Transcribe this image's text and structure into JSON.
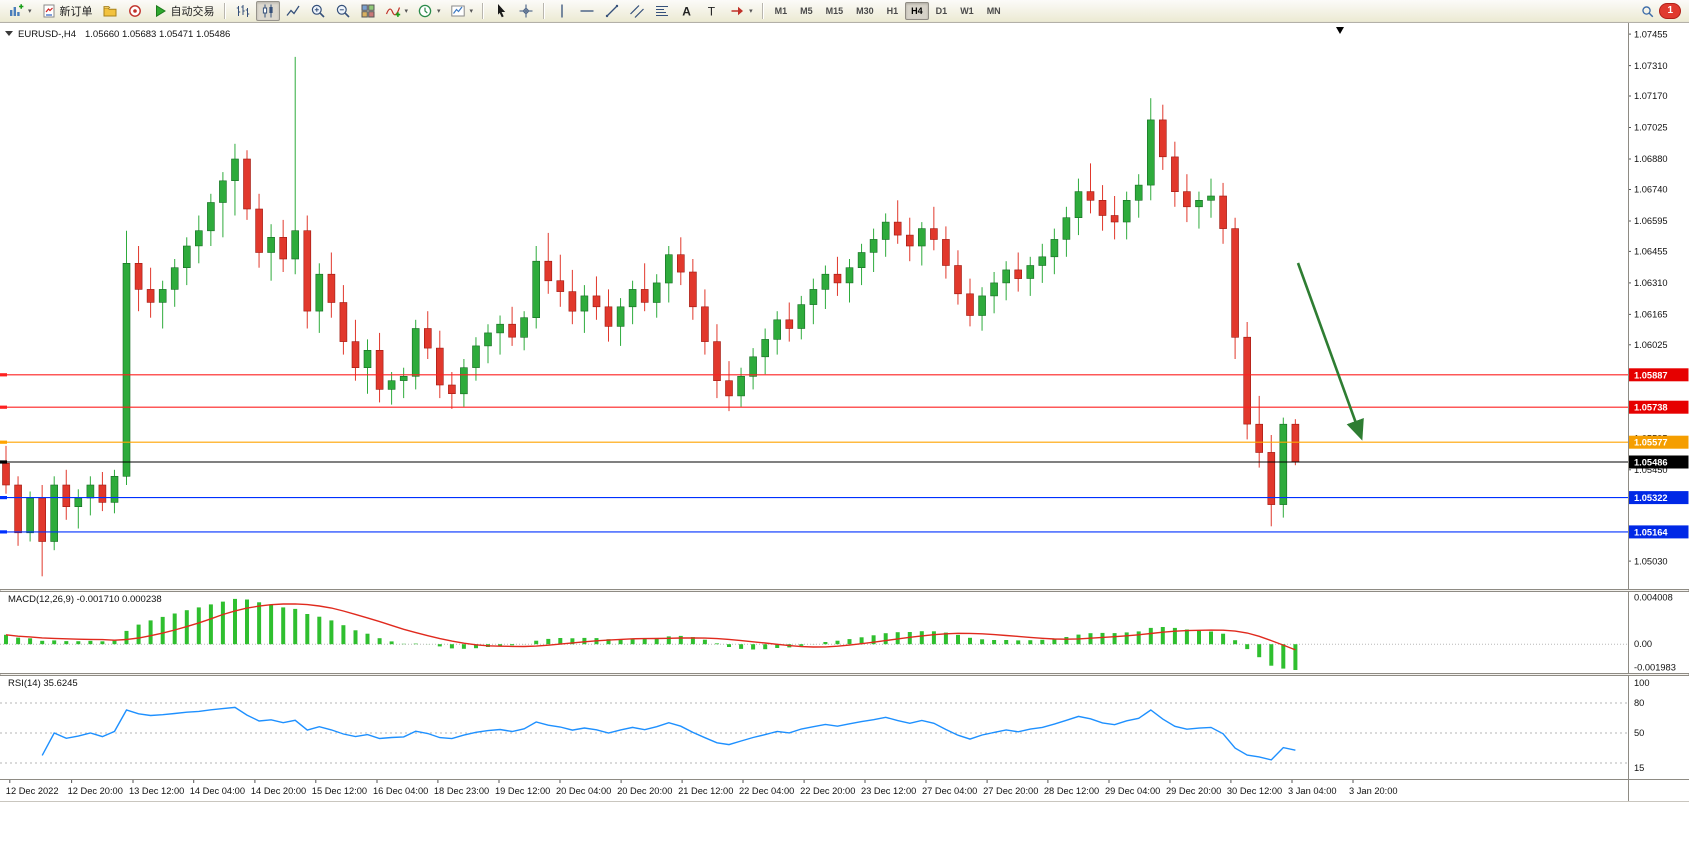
{
  "toolbar": {
    "new_order_label": "新订单",
    "auto_trading_label": "自动交易",
    "timeframes": [
      "M1",
      "M5",
      "M15",
      "M30",
      "H1",
      "H4",
      "D1",
      "W1",
      "MN"
    ],
    "selected_timeframe": "H4",
    "notification_badge": "1",
    "icons": [
      "new-chart",
      "new-order",
      "profiles",
      "community",
      "auto-trading",
      "bar-chart",
      "candlestick-chart",
      "line-chart",
      "zoom-in",
      "zoom-out",
      "tile-windows",
      "indicators",
      "periods-clock",
      "template",
      "cursor",
      "crosshair",
      "vertical-line",
      "horizontal-line",
      "trendline",
      "equidistant-channel",
      "fibonacci",
      "text",
      "text-label",
      "arrows",
      "search",
      "notifications"
    ]
  },
  "chart": {
    "symbol_title": "EURUSD-,H4",
    "ohlc_values": "1.05660 1.05683 1.05471 1.05486"
  },
  "indicators": {
    "macd_text": "MACD(12,26,9) -0.001710 0.000238",
    "rsi_text": "RSI(14) 35.6245"
  },
  "colors": {
    "up": "#2eab3c",
    "up_stroke": "#156b22",
    "down": "#e1382c",
    "down_stroke": "#9c1810",
    "hline_red": "#fe2020",
    "hline_orange": "#ffa400",
    "hline_blue": "#0030ff",
    "current_price": "#000000",
    "arrow": "#2e7d32",
    "macd_hist": "#2fbf2f",
    "macd_signal": "#e02a1e",
    "rsi_line": "#1e90ff"
  },
  "chart_data": {
    "type": "candlestick",
    "symbol": "EURUSD-",
    "timeframe": "H4",
    "current": {
      "open": 1.0566,
      "high": 1.05683,
      "low": 1.05471,
      "close": 1.05486
    },
    "ylim": [
      1.049,
      1.0751
    ],
    "price_ticks": [
      "1.07455",
      "1.07310",
      "1.07170",
      "1.07025",
      "1.06880",
      "1.06740",
      "1.06595",
      "1.06455",
      "1.06310",
      "1.06165",
      "1.06025",
      "1.05880",
      "1.05735",
      "1.05595",
      "1.05450",
      "1.05310",
      "1.05165",
      "1.05030"
    ],
    "hlines": [
      {
        "price": 1.05887,
        "label": "1.05887",
        "color": "#fe2020",
        "tag": "#e60000"
      },
      {
        "price": 1.05738,
        "label": "1.05738",
        "color": "#fe2020",
        "tag": "#e60000"
      },
      {
        "price": 1.05577,
        "label": "1.05577",
        "color": "#ffa400",
        "tag": "#f59e00"
      },
      {
        "price": 1.05486,
        "label": "1.05486",
        "color": "#000000",
        "tag": "#000000",
        "current": true
      },
      {
        "price": 1.05322,
        "label": "1.05322",
        "color": "#0030ff",
        "tag": "#0028e6"
      },
      {
        "price": 1.05164,
        "label": "1.05164",
        "color": "#0030ff",
        "tag": "#0028e6"
      }
    ],
    "trend_arrow": {
      "from_frac": 0.797,
      "from_price": 1.064,
      "to_frac": 0.836,
      "to_price": 1.056,
      "color": "#2e7d32"
    },
    "candles": [
      [
        1.0548,
        1.0556,
        1.0534,
        1.0538
      ],
      [
        1.0538,
        1.0542,
        1.051,
        1.0516
      ],
      [
        1.0516,
        1.0535,
        1.0512,
        1.0532
      ],
      [
        1.0532,
        1.0538,
        1.0496,
        1.0512
      ],
      [
        1.0512,
        1.0542,
        1.0508,
        1.0538
      ],
      [
        1.0538,
        1.0545,
        1.0522,
        1.0528
      ],
      [
        1.0528,
        1.0536,
        1.0518,
        1.0532
      ],
      [
        1.0532,
        1.0542,
        1.0524,
        1.0538
      ],
      [
        1.0538,
        1.0544,
        1.0526,
        1.053
      ],
      [
        1.053,
        1.0545,
        1.0525,
        1.0542
      ],
      [
        1.0542,
        1.0655,
        1.0538,
        1.064
      ],
      [
        1.064,
        1.0648,
        1.0618,
        1.0628
      ],
      [
        1.0628,
        1.0638,
        1.0615,
        1.0622
      ],
      [
        1.0622,
        1.0632,
        1.061,
        1.0628
      ],
      [
        1.0628,
        1.0642,
        1.062,
        1.0638
      ],
      [
        1.0638,
        1.0652,
        1.063,
        1.0648
      ],
      [
        1.0648,
        1.0662,
        1.064,
        1.0655
      ],
      [
        1.0655,
        1.0672,
        1.0648,
        1.0668
      ],
      [
        1.0668,
        1.0682,
        1.0652,
        1.0678
      ],
      [
        1.0678,
        1.0695,
        1.0662,
        1.0688
      ],
      [
        1.0688,
        1.0692,
        1.066,
        1.0665
      ],
      [
        1.0665,
        1.0672,
        1.0638,
        1.0645
      ],
      [
        1.0645,
        1.0658,
        1.0632,
        1.0652
      ],
      [
        1.0652,
        1.066,
        1.0636,
        1.0642
      ],
      [
        1.0642,
        1.0735,
        1.0635,
        1.0655
      ],
      [
        1.0655,
        1.0662,
        1.061,
        1.0618
      ],
      [
        1.0618,
        1.064,
        1.0608,
        1.0635
      ],
      [
        1.0635,
        1.0645,
        1.0615,
        1.0622
      ],
      [
        1.0622,
        1.063,
        1.0598,
        1.0604
      ],
      [
        1.0604,
        1.0614,
        1.0586,
        1.0592
      ],
      [
        1.0592,
        1.0605,
        1.058,
        1.06
      ],
      [
        1.06,
        1.0608,
        1.0576,
        1.0582
      ],
      [
        1.0582,
        1.059,
        1.0575,
        1.0586
      ],
      [
        1.0586,
        1.0592,
        1.0578,
        1.0588
      ],
      [
        1.0588,
        1.0614,
        1.0582,
        1.061
      ],
      [
        1.061,
        1.0618,
        1.0596,
        1.0601
      ],
      [
        1.0601,
        1.0609,
        1.0578,
        1.0584
      ],
      [
        1.0584,
        1.059,
        1.0573,
        1.058
      ],
      [
        1.058,
        1.0596,
        1.0574,
        1.0592
      ],
      [
        1.0592,
        1.0606,
        1.0586,
        1.0602
      ],
      [
        1.0602,
        1.0612,
        1.0594,
        1.0608
      ],
      [
        1.0608,
        1.0616,
        1.0598,
        1.0612
      ],
      [
        1.0612,
        1.062,
        1.0602,
        1.0606
      ],
      [
        1.0606,
        1.0618,
        1.06,
        1.0615
      ],
      [
        1.0615,
        1.0648,
        1.061,
        1.0641
      ],
      [
        1.0641,
        1.0654,
        1.0626,
        1.0632
      ],
      [
        1.0632,
        1.0644,
        1.062,
        1.0627
      ],
      [
        1.0627,
        1.0637,
        1.0612,
        1.0618
      ],
      [
        1.0618,
        1.063,
        1.0608,
        1.0625
      ],
      [
        1.0625,
        1.0634,
        1.0614,
        1.062
      ],
      [
        1.062,
        1.0628,
        1.0604,
        1.0611
      ],
      [
        1.0611,
        1.0624,
        1.0602,
        1.062
      ],
      [
        1.062,
        1.0632,
        1.0612,
        1.0628
      ],
      [
        1.0628,
        1.064,
        1.0618,
        1.0622
      ],
      [
        1.0622,
        1.0635,
        1.0615,
        1.0631
      ],
      [
        1.0631,
        1.0648,
        1.0622,
        1.0644
      ],
      [
        1.0644,
        1.0652,
        1.063,
        1.0636
      ],
      [
        1.0636,
        1.0642,
        1.0614,
        1.062
      ],
      [
        1.062,
        1.0628,
        1.0598,
        1.0604
      ],
      [
        1.0604,
        1.0612,
        1.0578,
        1.0586
      ],
      [
        1.0586,
        1.0595,
        1.0572,
        1.0579
      ],
      [
        1.0579,
        1.0592,
        1.0574,
        1.0588
      ],
      [
        1.0588,
        1.0601,
        1.0582,
        1.0597
      ],
      [
        1.0597,
        1.061,
        1.0589,
        1.0605
      ],
      [
        1.0605,
        1.0618,
        1.0598,
        1.0614
      ],
      [
        1.0614,
        1.0622,
        1.0604,
        1.061
      ],
      [
        1.061,
        1.0625,
        1.0605,
        1.0621
      ],
      [
        1.0621,
        1.0633,
        1.0612,
        1.0628
      ],
      [
        1.0628,
        1.0639,
        1.0619,
        1.0635
      ],
      [
        1.0635,
        1.0643,
        1.0625,
        1.0631
      ],
      [
        1.0631,
        1.0642,
        1.0622,
        1.0638
      ],
      [
        1.0638,
        1.0649,
        1.063,
        1.0645
      ],
      [
        1.0645,
        1.0656,
        1.0636,
        1.0651
      ],
      [
        1.0651,
        1.0663,
        1.0643,
        1.0659
      ],
      [
        1.0659,
        1.0669,
        1.0649,
        1.0653
      ],
      [
        1.0653,
        1.0661,
        1.0641,
        1.0648
      ],
      [
        1.0648,
        1.0659,
        1.0639,
        1.0656
      ],
      [
        1.0656,
        1.0666,
        1.0646,
        1.0651
      ],
      [
        1.0651,
        1.0657,
        1.0633,
        1.0639
      ],
      [
        1.0639,
        1.0646,
        1.0621,
        1.0626
      ],
      [
        1.0626,
        1.0633,
        1.0611,
        1.0616
      ],
      [
        1.0616,
        1.0629,
        1.0609,
        1.0625
      ],
      [
        1.0625,
        1.0636,
        1.0617,
        1.0631
      ],
      [
        1.0631,
        1.0641,
        1.0623,
        1.0637
      ],
      [
        1.0637,
        1.0645,
        1.0627,
        1.0633
      ],
      [
        1.0633,
        1.0643,
        1.0625,
        1.0639
      ],
      [
        1.0639,
        1.0649,
        1.0631,
        1.0643
      ],
      [
        1.0643,
        1.0656,
        1.0635,
        1.0651
      ],
      [
        1.0651,
        1.0666,
        1.0643,
        1.0661
      ],
      [
        1.0661,
        1.0679,
        1.0653,
        1.0673
      ],
      [
        1.0673,
        1.0686,
        1.0663,
        1.0669
      ],
      [
        1.0669,
        1.0676,
        1.0655,
        1.0662
      ],
      [
        1.0662,
        1.0671,
        1.0651,
        1.0659
      ],
      [
        1.0659,
        1.0673,
        1.0651,
        1.0669
      ],
      [
        1.0669,
        1.0681,
        1.0661,
        1.0676
      ],
      [
        1.0676,
        1.0716,
        1.0669,
        1.0706
      ],
      [
        1.0706,
        1.0713,
        1.0683,
        1.0689
      ],
      [
        1.0689,
        1.0696,
        1.0666,
        1.0673
      ],
      [
        1.0673,
        1.0681,
        1.0659,
        1.0666
      ],
      [
        1.0666,
        1.0673,
        1.0656,
        1.0669
      ],
      [
        1.0669,
        1.0679,
        1.0661,
        1.0671
      ],
      [
        1.0671,
        1.0677,
        1.0649,
        1.0656
      ],
      [
        1.0656,
        1.0661,
        1.0596,
        1.0606
      ],
      [
        1.0606,
        1.0613,
        1.0559,
        1.0566
      ],
      [
        1.0566,
        1.0579,
        1.0546,
        1.0553
      ],
      [
        1.0553,
        1.0561,
        1.0519,
        1.0529
      ],
      [
        1.0529,
        1.0569,
        1.0523,
        1.0566
      ],
      [
        1.0566,
        1.05683,
        1.05471,
        1.05486
      ]
    ],
    "time_labels": [
      {
        "t": "12 Dec 2022",
        "f": 0.006
      },
      {
        "t": "12 Dec 20:00",
        "f": 0.044
      },
      {
        "t": "13 Dec 12:00",
        "f": 0.0817
      },
      {
        "t": "14 Dec 04:00",
        "f": 0.119
      },
      {
        "t": "14 Dec 20:00",
        "f": 0.1566
      },
      {
        "t": "15 Dec 12:00",
        "f": 0.194
      },
      {
        "t": "16 Dec 04:00",
        "f": 0.2316
      },
      {
        "t": "18 Dec 23:00",
        "f": 0.269
      },
      {
        "t": "19 Dec 12:00",
        "f": 0.3065
      },
      {
        "t": "20 Dec 04:00",
        "f": 0.344
      },
      {
        "t": "20 Dec 20:00",
        "f": 0.3815
      },
      {
        "t": "21 Dec 12:00",
        "f": 0.419
      },
      {
        "t": "22 Dec 04:00",
        "f": 0.4564
      },
      {
        "t": "22 Dec 20:00",
        "f": 0.4939
      },
      {
        "t": "23 Dec 12:00",
        "f": 0.5313
      },
      {
        "t": "27 Dec 04:00",
        "f": 0.5688
      },
      {
        "t": "27 Dec 20:00",
        "f": 0.6063
      },
      {
        "t": "28 Dec 12:00",
        "f": 0.6437
      },
      {
        "t": "29 Dec 04:00",
        "f": 0.6812
      },
      {
        "t": "29 Dec 20:00",
        "f": 0.7187
      },
      {
        "t": "30 Dec 12:00",
        "f": 0.7561
      },
      {
        "t": "3 Jan 04:00",
        "f": 0.7936
      },
      {
        "t": "3 Jan 20:00",
        "f": 0.8311
      }
    ],
    "macd": {
      "params": "12,26,9",
      "value": -0.00171,
      "signal": 0.000238,
      "ylim": [
        -0.0022,
        0.0042
      ],
      "axis_ticks": [
        {
          "text": "0.004008",
          "v": 0.004008
        },
        {
          "text": "0.00",
          "v": 0
        },
        {
          "text": "-0.001983",
          "v": -0.001983
        }
      ]
    },
    "rsi": {
      "period": 14,
      "value": 35.6245,
      "levels": [
        80,
        50,
        20
      ],
      "ylim": [
        10,
        102
      ],
      "axis_ticks": [
        {
          "text": "100",
          "v": 100
        },
        {
          "text": "80",
          "v": 80
        },
        {
          "text": "50",
          "v": 50
        },
        {
          "text": "15",
          "v": 15
        }
      ]
    }
  }
}
